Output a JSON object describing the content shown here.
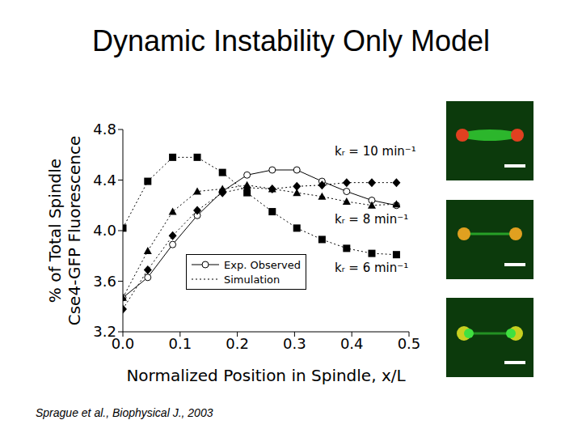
{
  "chart_data": {
    "type": "line",
    "title": "Dynamic Instability Only Model",
    "xlabel": "Normalized Position in Spindle, x/L",
    "ylabel": [
      "% of Total Spindle",
      "Cse4-GFP Fluorescence"
    ],
    "x": [
      0,
      0.0435,
      0.087,
      0.13,
      0.174,
      0.217,
      0.261,
      0.304,
      0.348,
      0.391,
      0.435,
      0.478
    ],
    "series": [
      {
        "name": "Exp. Observed",
        "color": "#000000",
        "marker": "circle",
        "line_style": "solid",
        "values": [
          3.47,
          3.63,
          3.89,
          4.12,
          4.31,
          4.44,
          4.48,
          4.48,
          4.39,
          4.31,
          4.24,
          4.2
        ]
      },
      {
        "name": "Simulation",
        "color": "#000000",
        "marker": "square",
        "line_style": "dotted",
        "values": [
          4.02,
          4.39,
          4.58,
          4.58,
          4.46,
          4.3,
          4.15,
          4.02,
          3.93,
          3.86,
          3.82,
          3.81
        ]
      },
      {
        "name": "Simulation",
        "color": "#000000",
        "marker": "triangle",
        "line_style": "dotted",
        "values": [
          3.47,
          3.84,
          4.15,
          4.31,
          4.33,
          4.36,
          4.33,
          4.3,
          4.27,
          4.23,
          4.2,
          4.21
        ]
      },
      {
        "name": "Simulation",
        "color": "#000000",
        "marker": "diamond",
        "line_style": "dotted",
        "values": [
          3.38,
          3.69,
          3.96,
          4.16,
          4.3,
          4.34,
          4.33,
          4.35,
          4.36,
          4.38,
          4.38,
          4.38
        ]
      }
    ],
    "annotations": [
      "kᵣ = 10 min⁻¹",
      "kᵣ = 8 min⁻¹",
      "kᵣ = 6 min⁻¹"
    ],
    "source": "Sprague et al., Biophysical J., 2003",
    "xlim": [
      0,
      0.5
    ],
    "xticks": [
      {
        "value": 0,
        "label": "0.0"
      },
      0.1,
      0.2,
      0.3,
      0.4,
      0.5
    ],
    "ylim": [
      3.2,
      4.8
    ],
    "yticks": [
      3.2,
      3.6,
      {
        "value": 4,
        "label": "4.0"
      },
      4.4,
      4.8
    ],
    "grid": false
  }
}
